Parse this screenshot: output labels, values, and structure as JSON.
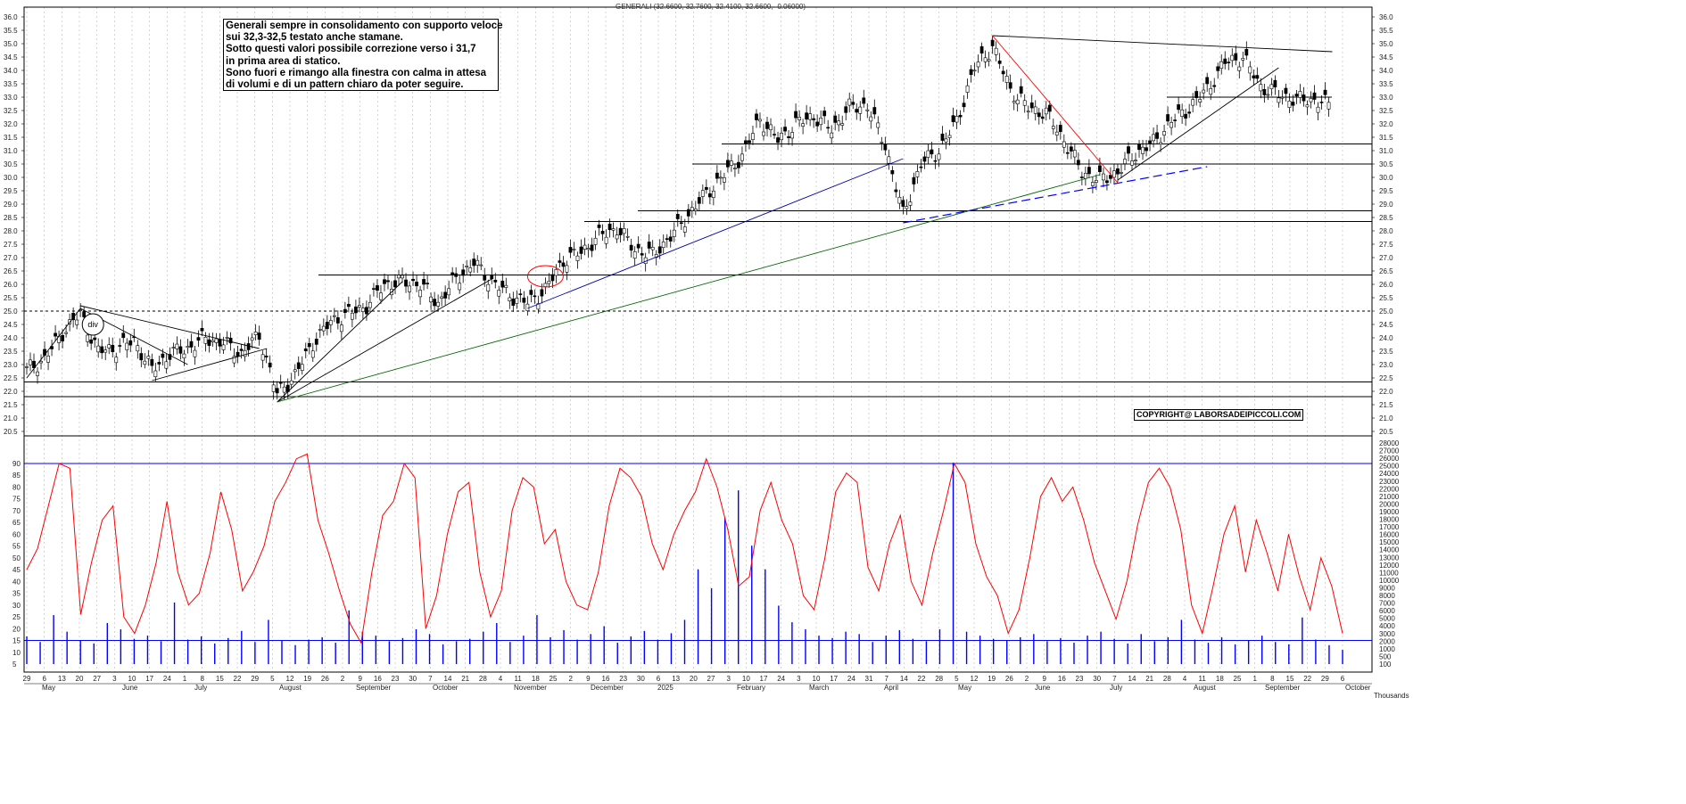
{
  "chart_data": [
    {
      "type": "candlestick",
      "title": "GENERALI (32.6600, 32.7600, 32.4100, 32.6600, -0.06000)",
      "ylim": [
        20.0,
        36.5
      ],
      "y_ticks": [
        "20.5",
        "21.0",
        "21.5",
        "22.0",
        "22.5",
        "23.0",
        "23.5",
        "24.0",
        "24.5",
        "25.0",
        "25.5",
        "26.0",
        "26.5",
        "27.0",
        "27.5",
        "28.0",
        "28.5",
        "29.0",
        "29.5",
        "30.0",
        "30.5",
        "31.0",
        "31.5",
        "32.0",
        "32.5",
        "33.0",
        "33.5",
        "34.0",
        "34.5",
        "35.0",
        "35.5",
        "36.0"
      ],
      "close_series": [
        {
          "date": "2024-04-29",
          "close": 22.8
        },
        {
          "date": "2024-05-06",
          "close": 23.2
        },
        {
          "date": "2024-05-13",
          "close": 24.2
        },
        {
          "date": "2024-05-20",
          "close": 24.9
        },
        {
          "date": "2024-05-27",
          "close": 23.5
        },
        {
          "date": "2024-06-03",
          "close": 23.6
        },
        {
          "date": "2024-06-10",
          "close": 23.9
        },
        {
          "date": "2024-06-17",
          "close": 22.8
        },
        {
          "date": "2024-06-24",
          "close": 23.4
        },
        {
          "date": "2024-07-01",
          "close": 23.6
        },
        {
          "date": "2024-07-08",
          "close": 24.0
        },
        {
          "date": "2024-07-15",
          "close": 23.8
        },
        {
          "date": "2024-07-22",
          "close": 23.4
        },
        {
          "date": "2024-07-29",
          "close": 24.1
        },
        {
          "date": "2024-08-05",
          "close": 21.9
        },
        {
          "date": "2024-08-12",
          "close": 22.6
        },
        {
          "date": "2024-08-19",
          "close": 23.8
        },
        {
          "date": "2024-08-26",
          "close": 24.6
        },
        {
          "date": "2024-09-02",
          "close": 24.9
        },
        {
          "date": "2024-09-09",
          "close": 25.2
        },
        {
          "date": "2024-09-16",
          "close": 26.0
        },
        {
          "date": "2024-09-23",
          "close": 26.1
        },
        {
          "date": "2024-09-30",
          "close": 26.0
        },
        {
          "date": "2024-10-07",
          "close": 25.3
        },
        {
          "date": "2024-10-14",
          "close": 26.2
        },
        {
          "date": "2024-10-21",
          "close": 26.8
        },
        {
          "date": "2024-10-28",
          "close": 26.1
        },
        {
          "date": "2024-11-04",
          "close": 25.6
        },
        {
          "date": "2024-11-11",
          "close": 25.3
        },
        {
          "date": "2024-11-18",
          "close": 25.8
        },
        {
          "date": "2024-11-25",
          "close": 26.9
        },
        {
          "date": "2024-12-02",
          "close": 27.2
        },
        {
          "date": "2024-12-09",
          "close": 27.8
        },
        {
          "date": "2024-12-16",
          "close": 28.1
        },
        {
          "date": "2024-12-23",
          "close": 27.3
        },
        {
          "date": "2024-12-30",
          "close": 27.1
        },
        {
          "date": "2025-01-06",
          "close": 27.8
        },
        {
          "date": "2025-01-13",
          "close": 28.6
        },
        {
          "date": "2025-01-20",
          "close": 29.4
        },
        {
          "date": "2025-01-27",
          "close": 30.1
        },
        {
          "date": "2025-02-03",
          "close": 30.8
        },
        {
          "date": "2025-02-10",
          "close": 32.2
        },
        {
          "date": "2025-02-17",
          "close": 31.4
        },
        {
          "date": "2025-02-24",
          "close": 32.0
        },
        {
          "date": "2025-03-03",
          "close": 32.3
        },
        {
          "date": "2025-03-10",
          "close": 31.8
        },
        {
          "date": "2025-03-17",
          "close": 32.6
        },
        {
          "date": "2025-03-24",
          "close": 32.7
        },
        {
          "date": "2025-03-31",
          "close": 31.2
        },
        {
          "date": "2025-04-07",
          "close": 28.6
        },
        {
          "date": "2025-04-14",
          "close": 30.5
        },
        {
          "date": "2025-04-21",
          "close": 31.0
        },
        {
          "date": "2025-04-28",
          "close": 32.1
        },
        {
          "date": "2025-05-05",
          "close": 34.1
        },
        {
          "date": "2025-05-12",
          "close": 34.9
        },
        {
          "date": "2025-05-19",
          "close": 33.3
        },
        {
          "date": "2025-05-26",
          "close": 32.6
        },
        {
          "date": "2025-06-02",
          "close": 32.4
        },
        {
          "date": "2025-06-09",
          "close": 31.4
        },
        {
          "date": "2025-06-16",
          "close": 30.2
        },
        {
          "date": "2025-06-23",
          "close": 29.9
        },
        {
          "date": "2025-06-30",
          "close": 30.2
        },
        {
          "date": "2025-07-07",
          "close": 30.9
        },
        {
          "date": "2025-07-14",
          "close": 31.3
        },
        {
          "date": "2025-07-21",
          "close": 32.1
        },
        {
          "date": "2025-07-28",
          "close": 32.6
        },
        {
          "date": "2025-08-04",
          "close": 33.3
        },
        {
          "date": "2025-08-11",
          "close": 34.3
        },
        {
          "date": "2025-08-18",
          "close": 34.5
        },
        {
          "date": "2025-08-25",
          "close": 33.4
        },
        {
          "date": "2025-09-01",
          "close": 33.1
        },
        {
          "date": "2025-09-08",
          "close": 32.9
        },
        {
          "date": "2025-09-15",
          "close": 32.9
        },
        {
          "date": "2025-09-22",
          "close": 32.66
        }
      ],
      "horizontal_levels": [
        21.8,
        22.35,
        25.0,
        26.35,
        28.35,
        28.75,
        30.5,
        31.25,
        33.0
      ],
      "annotations": [
        "div"
      ]
    },
    {
      "type": "line",
      "series": [
        {
          "values": [
            45,
            54,
            72,
            90,
            88,
            26,
            48,
            66,
            72,
            25,
            18,
            30,
            48,
            74,
            44,
            30,
            35,
            52,
            78,
            62,
            36,
            44,
            55,
            74,
            82,
            92,
            94,
            66,
            52,
            36,
            22,
            14,
            44,
            68,
            74,
            90,
            84,
            20,
            34,
            60,
            78,
            82,
            44,
            25,
            36,
            70,
            84,
            80,
            56,
            62,
            40,
            30,
            28,
            44,
            72,
            88,
            84,
            76,
            56,
            45,
            60,
            70,
            78,
            92,
            80,
            62,
            38,
            42,
            70,
            82,
            66,
            56,
            34,
            28,
            50,
            78,
            86,
            82,
            46,
            36,
            56,
            68,
            40,
            30,
            52,
            70,
            90,
            82,
            56,
            42,
            34,
            18,
            28,
            50,
            76,
            84,
            74,
            80,
            66,
            48,
            36,
            24,
            40,
            64,
            82,
            88,
            80,
            62,
            30,
            18,
            38,
            60,
            72,
            44,
            66,
            52,
            36,
            60,
            42,
            28,
            50,
            38,
            18
          ]
        }
      ],
      "ylim": [
        0,
        95
      ],
      "y_ticks": [
        "5",
        "10",
        "15",
        "20",
        "25",
        "30",
        "35",
        "40",
        "45",
        "50",
        "55",
        "60",
        "65",
        "70",
        "75",
        "80",
        "85",
        "90"
      ],
      "reference_levels": [
        90,
        15
      ]
    },
    {
      "type": "bar",
      "y_ticks_right": [
        "100",
        "500",
        "1000",
        "2000",
        "3000",
        "4000",
        "5000",
        "6000",
        "7000",
        "8000",
        "9000",
        "10000",
        "11000",
        "12000",
        "13000",
        "14000",
        "15000",
        "16000",
        "17000",
        "18000",
        "19000",
        "20000",
        "21000",
        "22000",
        "23000",
        "24000",
        "25000",
        "26000",
        "27000",
        "28000"
      ],
      "values": [
        3500,
        2800,
        6200,
        4100,
        3000,
        2600,
        5200,
        4400,
        3200,
        3600,
        2900,
        7800,
        3100,
        3500,
        2600,
        3300,
        4200,
        2800,
        5600,
        3000,
        2400,
        3100,
        3400,
        2700,
        6800,
        4100,
        3600,
        2900,
        3300,
        4400,
        3800,
        2500,
        2900,
        3200,
        4100,
        5200,
        2800,
        3600,
        6200,
        3400,
        4300,
        3100,
        3800,
        4800,
        2700,
        3500,
        4200,
        3100,
        3900,
        5600,
        12000,
        9600,
        18500,
        22000,
        15000,
        12000,
        7400,
        5300,
        4400,
        3600,
        3300,
        4100,
        3800,
        2800,
        3600,
        4300,
        3200,
        2900,
        4400,
        25500,
        4100,
        3600,
        3200,
        3000,
        3400,
        3800,
        2900,
        3300,
        2700,
        3600,
        4100,
        3200,
        2600,
        3800,
        2900,
        3400,
        5600,
        3100,
        2700,
        3400,
        2500,
        3000,
        3600,
        2800,
        2500,
        5900,
        3100,
        2400,
        1800
      ]
    }
  ],
  "header": {
    "title": "GENERALI (32.6600, 32.7600, 32.4100, 32.6600, -0.06000)"
  },
  "commentary": {
    "line1": "Generali sempre in consolidamento con supporto veloce",
    "line2": "sui 32,3-32,5 testato anche stamane.",
    "line3": "Sotto questi valori possibile correzione verso i 31,7",
    "line4": "in prima area di statico.",
    "line5": "Sono fuori e rimango alla finestra con calma in attesa",
    "line6": "di volumi e di un pattern chiaro da poter seguire."
  },
  "copyright": "COPYRIGHT@ LABORSADEIPICCOLI.COM",
  "div_label": "div",
  "x_axis": {
    "day_ticks": [
      "29",
      "6",
      "13",
      "20",
      "27",
      "3",
      "10",
      "17",
      "24",
      "1",
      "8",
      "15",
      "22",
      "29",
      "5",
      "12",
      "19",
      "26",
      "2",
      "9",
      "16",
      "23",
      "30",
      "7",
      "14",
      "21",
      "28",
      "4",
      "11",
      "18",
      "25",
      "2",
      "9",
      "16",
      "23",
      "30",
      "6",
      "13",
      "20",
      "27",
      "3",
      "10",
      "17",
      "24",
      "3",
      "10",
      "17",
      "24",
      "31",
      "7",
      "14",
      "22",
      "28",
      "5",
      "12",
      "19",
      "26",
      "2",
      "9",
      "16",
      "23",
      "30",
      "7",
      "14",
      "21",
      "28",
      "4",
      "11",
      "18",
      "25",
      "1",
      "8",
      "15",
      "22",
      "29",
      "6"
    ],
    "month_labels": [
      "May",
      "June",
      "July",
      "August",
      "September",
      "October",
      "November",
      "December",
      "2025",
      "February",
      "March",
      "April",
      "May",
      "June",
      "July",
      "August",
      "September",
      "October"
    ],
    "corner_unit": "Thousands"
  },
  "colors": {
    "candle": "#000000",
    "rsi": "#ff0000",
    "volume": "#0000ff",
    "trend_blue": "#0000aa",
    "trend_green": "#006400",
    "level": "#000000"
  }
}
